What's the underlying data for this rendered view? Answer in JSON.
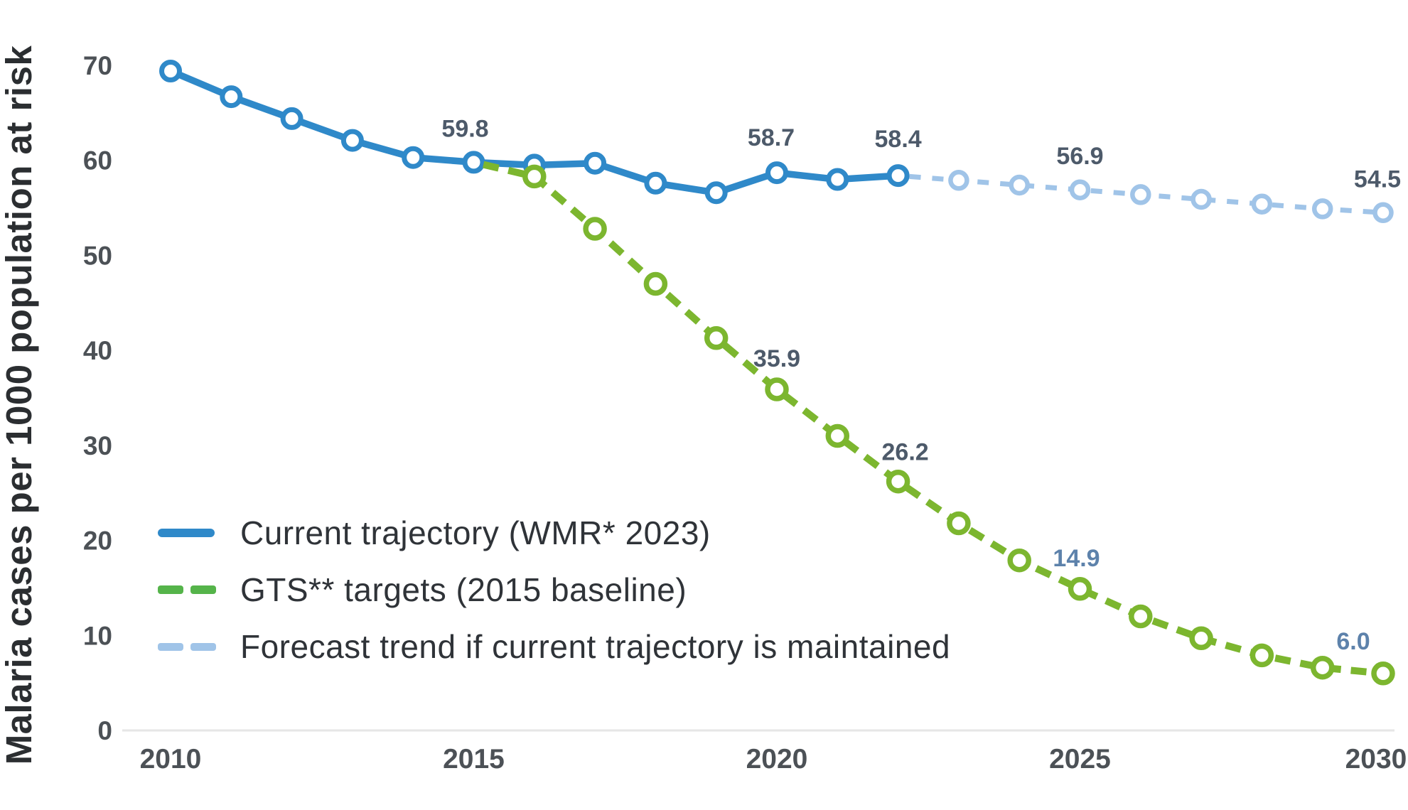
{
  "chart_data": {
    "type": "line",
    "title": "",
    "ylabel": "Malaria cases per 1000 population at risk",
    "xlabel": "",
    "ylim": [
      0,
      70
    ],
    "xlim": [
      2010,
      2030
    ],
    "yticks": [
      70,
      60,
      50,
      40,
      30,
      20,
      10,
      0
    ],
    "xticks": [
      2010,
      2015,
      2020,
      2025,
      2030
    ],
    "grid": false,
    "legend_position": "inside-left-bottom",
    "label_color": "#4d5a6a",
    "label_color_light": "#5d82ab",
    "axis_tick_color": "#4c5156",
    "axis_line_color": "#e6e6e6",
    "series": [
      {
        "key": "forecast",
        "name": "Forecast trend if current trajectory is maintained",
        "style": "dashed",
        "color": "#a0c4e8",
        "marker_skip_first": true,
        "years": [
          2022,
          2023,
          2024,
          2025,
          2026,
          2027,
          2028,
          2029,
          2030
        ],
        "values": [
          58.4,
          57.9,
          57.4,
          56.9,
          56.4,
          55.9,
          55.4,
          54.9,
          54.5
        ],
        "labels": [
          {
            "year": 2025,
            "text": "56.9",
            "dx": 0,
            "dy": -36
          },
          {
            "year": 2030,
            "text": "54.5",
            "dx": -8,
            "dy": -36
          }
        ]
      },
      {
        "key": "current",
        "name": "Current trajectory (WMR* 2023)",
        "style": "solid",
        "color": "#2f89c9",
        "marker_skip_first": false,
        "years": [
          2010,
          2011,
          2012,
          2013,
          2014,
          2015,
          2016,
          2017,
          2018,
          2019,
          2020,
          2021,
          2022
        ],
        "values": [
          69.4,
          66.7,
          64.4,
          62.1,
          60.3,
          59.8,
          59.5,
          59.7,
          57.6,
          56.6,
          58.7,
          58.0,
          58.4
        ],
        "labels": [
          {
            "year": 2015,
            "text": "59.8",
            "dx": -12,
            "dy": -36
          },
          {
            "year": 2020,
            "text": "58.7",
            "dx": -8,
            "dy": -38
          },
          {
            "year": 2022,
            "text": "58.4",
            "dx": 0,
            "dy": -40
          }
        ]
      },
      {
        "key": "gts",
        "name": "GTS** targets (2015 baseline)",
        "style": "dashed",
        "color": "#7cb62f",
        "marker_skip_first": true,
        "years": [
          2015,
          2016,
          2017,
          2018,
          2019,
          2020,
          2021,
          2022,
          2023,
          2024,
          2025,
          2026,
          2027,
          2028,
          2029,
          2030
        ],
        "values": [
          59.8,
          58.3,
          52.8,
          47.0,
          41.3,
          35.9,
          31.0,
          26.2,
          21.8,
          17.9,
          14.9,
          12.0,
          9.7,
          7.9,
          6.6,
          6.0
        ],
        "labels": [
          {
            "year": 2020,
            "text": "35.9",
            "dx": 0,
            "dy": -32
          },
          {
            "year": 2022,
            "text": "26.2",
            "dx": 10,
            "dy": -30
          },
          {
            "year": 2025,
            "text": "14.9",
            "dx": -5,
            "dy": -32,
            "color": "#5d82ab"
          },
          {
            "year": 2030,
            "text": "6.0",
            "dx": -42,
            "dy": -34,
            "color": "#5d82ab"
          }
        ]
      }
    ]
  },
  "legend": {
    "items": [
      {
        "label": "Current trajectory (WMR* 2023)",
        "style": "solid",
        "color": "#2f89c9"
      },
      {
        "label": "GTS** targets (2015 baseline)",
        "style": "dashed",
        "color": "#55b44a"
      },
      {
        "label": "Forecast trend if current trajectory is maintained",
        "style": "dashed",
        "color": "#a0c4e8"
      }
    ]
  }
}
